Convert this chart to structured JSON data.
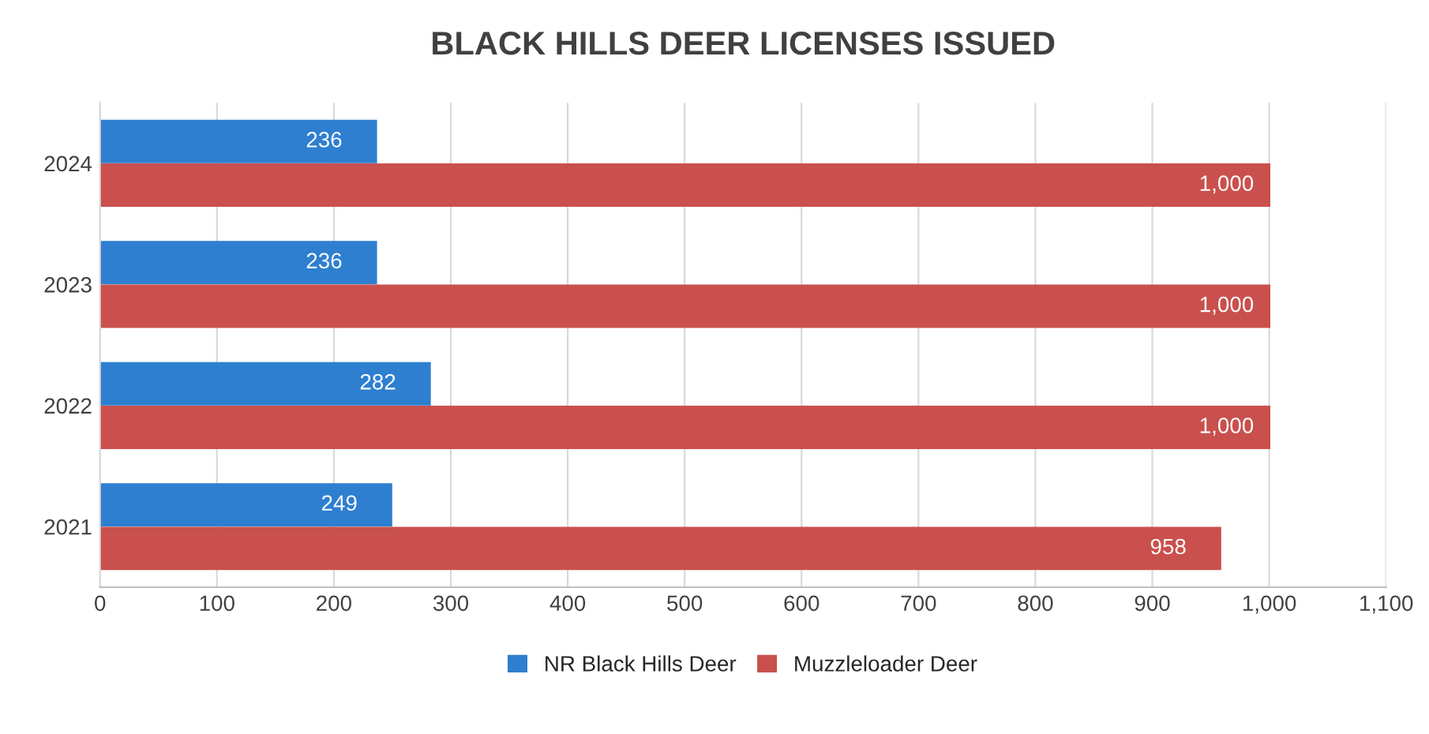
{
  "chart_data": {
    "type": "bar",
    "orientation": "horizontal",
    "title": "BLACK HILLS DEER LICENSES ISSUED",
    "categories": [
      "2024",
      "2023",
      "2022",
      "2021"
    ],
    "series": [
      {
        "name": "NR Black Hills Deer",
        "color": "#2e7fd0",
        "values": [
          236,
          236,
          282,
          249
        ],
        "value_labels": [
          "236",
          "236",
          "282",
          "249"
        ]
      },
      {
        "name": "Muzzleloader Deer",
        "color": "#c9504d",
        "values": [
          1000,
          1000,
          1000,
          958
        ],
        "value_labels": [
          "1,000",
          "1,000",
          "1,000",
          "958"
        ]
      }
    ],
    "xlim": [
      0,
      1100
    ],
    "xticks": [
      0,
      100,
      200,
      300,
      400,
      500,
      600,
      700,
      800,
      900,
      {
        "value": 1000,
        "label": "1,000"
      },
      {
        "value": 1100,
        "label": "1,100"
      }
    ],
    "grid": "x",
    "legend": "bottom"
  }
}
